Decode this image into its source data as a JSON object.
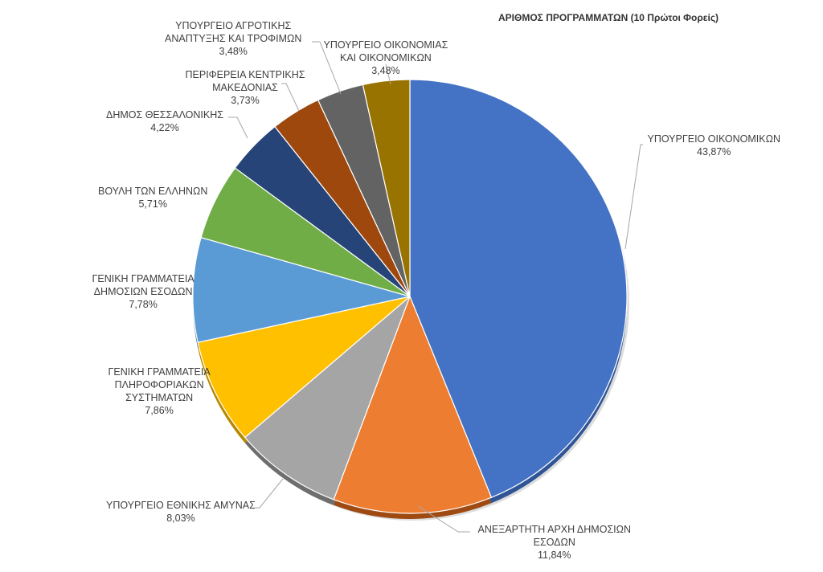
{
  "chart_data": {
    "type": "pie",
    "title": "ΑΡΙΘΜΟΣ ΠΡΟΓΡΑΜΜΑΤΩΝ (10 Πρώτοι Φορείς)",
    "slices": [
      {
        "label_lines": [
          "ΥΠΟΥΡΓΕΙΟ ΟΙΚΟΝΟΜΙΚΩΝ"
        ],
        "value": 43.87,
        "value_text": "43,87%",
        "color": "#4472C4",
        "shade": "#2F5597"
      },
      {
        "label_lines": [
          "ΑΝΕΞΑΡΤΗΤΗ ΑΡΧΗ ΔΗΜΟΣΙΩΝ",
          "ΕΣΟΔΩΝ"
        ],
        "value": 11.84,
        "value_text": "11,84%",
        "color": "#ED7D31",
        "shade": "#9E4A12"
      },
      {
        "label_lines": [
          "ΥΠΟΥΡΓΕΙΟ ΕΘΝΙΚΗΣ ΑΜΥΝΑΣ"
        ],
        "value": 8.03,
        "value_text": "8,03%",
        "color": "#A5A5A5",
        "shade": "#6E6E6E"
      },
      {
        "label_lines": [
          "ΓΕΝΙΚΗ ΓΡΑΜΜΑΤΕΙΑ",
          "ΠΛΗΡΟΦΟΡΙΑΚΩΝ",
          "ΣΥΣΤΗΜΑΤΩΝ"
        ],
        "value": 7.86,
        "value_text": "7,86%",
        "color": "#FFC000",
        "shade": "#B88900"
      },
      {
        "label_lines": [
          "ΓΕΝΙΚΗ ΓΡΑΜΜΑΤΕΙΑ",
          "ΔΗΜΟΣΙΩΝ ΕΣΟΔΩΝ"
        ],
        "value": 7.78,
        "value_text": "7,78%",
        "color": "#5B9BD5",
        "shade": "#3A6FA0"
      },
      {
        "label_lines": [
          "ΒΟΥΛΗ ΤΩΝ ΕΛΛΗΝΩΝ"
        ],
        "value": 5.71,
        "value_text": "5,71%",
        "color": "#70AD47",
        "shade": "#4A7A2C"
      },
      {
        "label_lines": [
          "ΔΗΜΟΣ ΘΕΣΣΑΛΟΝΙΚΗΣ"
        ],
        "value": 4.22,
        "value_text": "4,22%",
        "color": "#264478",
        "shade": "#16294A"
      },
      {
        "label_lines": [
          "ΠΕΡΙΦΕΡΕΙΑ ΚΕΝΤΡΙΚΗΣ",
          "ΜΑΚΕΔΟΝΙΑΣ"
        ],
        "value": 3.73,
        "value_text": "3,73%",
        "color": "#9E480E",
        "shade": "#6A2F08"
      },
      {
        "label_lines": [
          "ΥΠΟΥΡΓΕΙΟ ΑΓΡΟΤΙΚΗΣ",
          "ΑΝΑΠΤΥΞΗΣ ΚΑΙ ΤΡΟΦΙΜΩΝ"
        ],
        "value": 3.48,
        "value_text": "3,48%",
        "color": "#636363",
        "shade": "#404040"
      },
      {
        "label_lines": [
          "ΥΠΟΥΡΓΕΙΟ ΟΙΚΟΝΟΜΙΑΣ",
          "ΚΑΙ ΟΙΚΟΝΟΜΙΚΩΝ"
        ],
        "value": 3.48,
        "value_text": "3,48%",
        "color": "#997300",
        "shade": "#664D00"
      }
    ],
    "legend": "none",
    "data_labels": "outside with leader lines"
  }
}
